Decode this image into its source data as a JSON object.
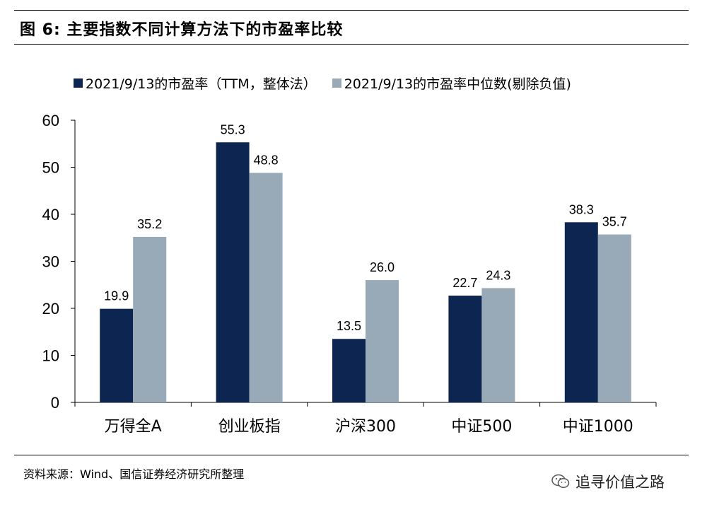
{
  "header": {
    "figure_title": "图  6:  主要指数不同计算方法下的市盈率比较"
  },
  "footer": {
    "source_note": "资料来源：Wind、国信证券经济研究所整理",
    "watermark_text": "追寻价值之路",
    "watermark_icon": "wechat-icon"
  },
  "colors": {
    "series_1": "#0d2651",
    "series_2": "#98aab7"
  },
  "chart_data": {
    "type": "bar",
    "categories": [
      "万得全A",
      "创业板指",
      "沪深300",
      "中证500",
      "中证1000"
    ],
    "series": [
      {
        "name": "2021/9/13的市盈率（TTM，整体法）",
        "values": [
          19.9,
          55.3,
          13.5,
          22.7,
          38.3
        ]
      },
      {
        "name": "2021/9/13的市盈率中位数(剔除负值)",
        "values": [
          35.2,
          48.8,
          26.0,
          24.3,
          35.7
        ]
      }
    ],
    "ylim": [
      0,
      60
    ],
    "yticks": [
      "0",
      "10",
      "20",
      "30",
      "40",
      "50",
      "60"
    ],
    "grid": false,
    "legend": "top"
  }
}
